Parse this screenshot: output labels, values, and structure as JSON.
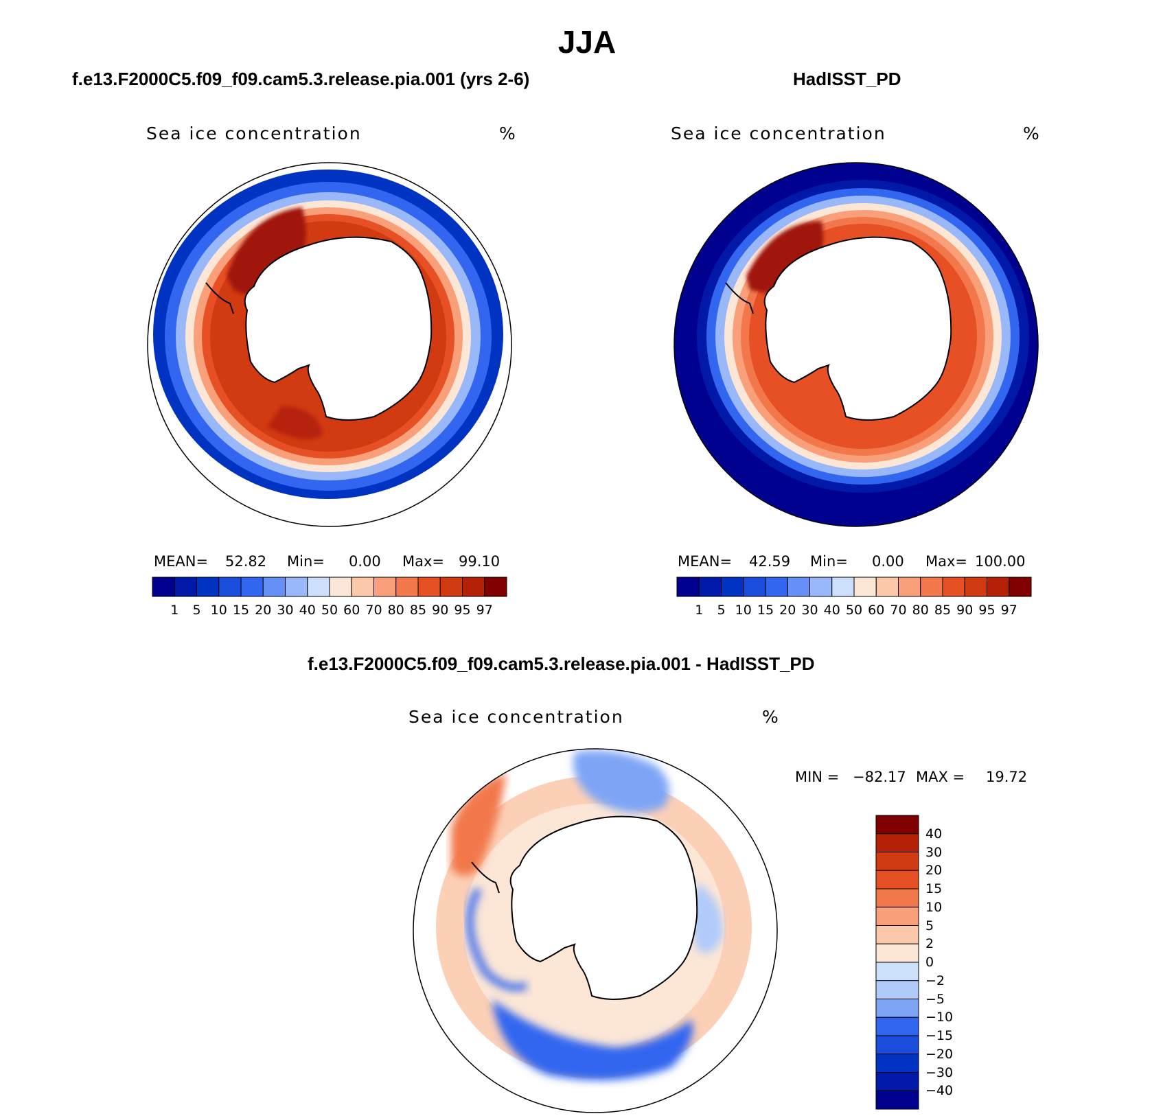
{
  "title": "JJA",
  "panels": [
    {
      "heading": "f.e13.F2000C5.f09_f09.cam5.3.release.pia.001 (yrs 2-6)",
      "variable": "Sea ice concentration",
      "units": "%",
      "stats": {
        "mean_label": "MEAN=",
        "mean": "52.82",
        "min_label": "Min=",
        "min": "0.00",
        "max_label": "Max=",
        "max": "99.10"
      }
    },
    {
      "heading": "HadISST_PD",
      "variable": "Sea ice concentration",
      "units": "%",
      "stats": {
        "mean_label": "MEAN=",
        "mean": "42.59",
        "min_label": "Min=",
        "min": "0.00",
        "max_label": "Max=",
        "max": "100.00"
      }
    },
    {
      "heading": "f.e13.F2000C5.f09_f09.cam5.3.release.pia.001 - HadISST_PD",
      "variable": "Sea ice concentration",
      "units": "%",
      "stats": {
        "min_label": "MIN =",
        "min": "−82.17",
        "max_label": "MAX =",
        "max": "19.72"
      }
    }
  ],
  "colorbar_abs": {
    "labels": [
      "1",
      "5",
      "10",
      "15",
      "20",
      "30",
      "40",
      "50",
      "60",
      "70",
      "80",
      "85",
      "90",
      "95",
      "97"
    ],
    "colors": [
      "#00008f",
      "#0019a8",
      "#0033c2",
      "#1a4ddb",
      "#3366f0",
      "#6690f5",
      "#99b8fa",
      "#cce0fc",
      "#fce6d6",
      "#fcc8aa",
      "#f9a07a",
      "#f2784c",
      "#e65024",
      "#d23a12",
      "#b52008",
      "#800000"
    ]
  },
  "colorbar_diff": {
    "labels": [
      "40",
      "30",
      "20",
      "15",
      "10",
      "5",
      "2",
      "0",
      "−2",
      "−5",
      "−10",
      "−15",
      "−20",
      "−30",
      "−40"
    ],
    "colors": [
      "#800000",
      "#b52008",
      "#d23a12",
      "#e65024",
      "#f2784c",
      "#f9a07a",
      "#fcc8aa",
      "#fce6d6",
      "#cce0fc",
      "#b0cbfa",
      "#7ea5f5",
      "#3366f0",
      "#1a4ddb",
      "#0033c2",
      "#0019a8",
      "#00008f"
    ]
  },
  "map_colors": {
    "ocean_open": "#00008f",
    "land": "#ffffff",
    "coast": "#000000"
  }
}
